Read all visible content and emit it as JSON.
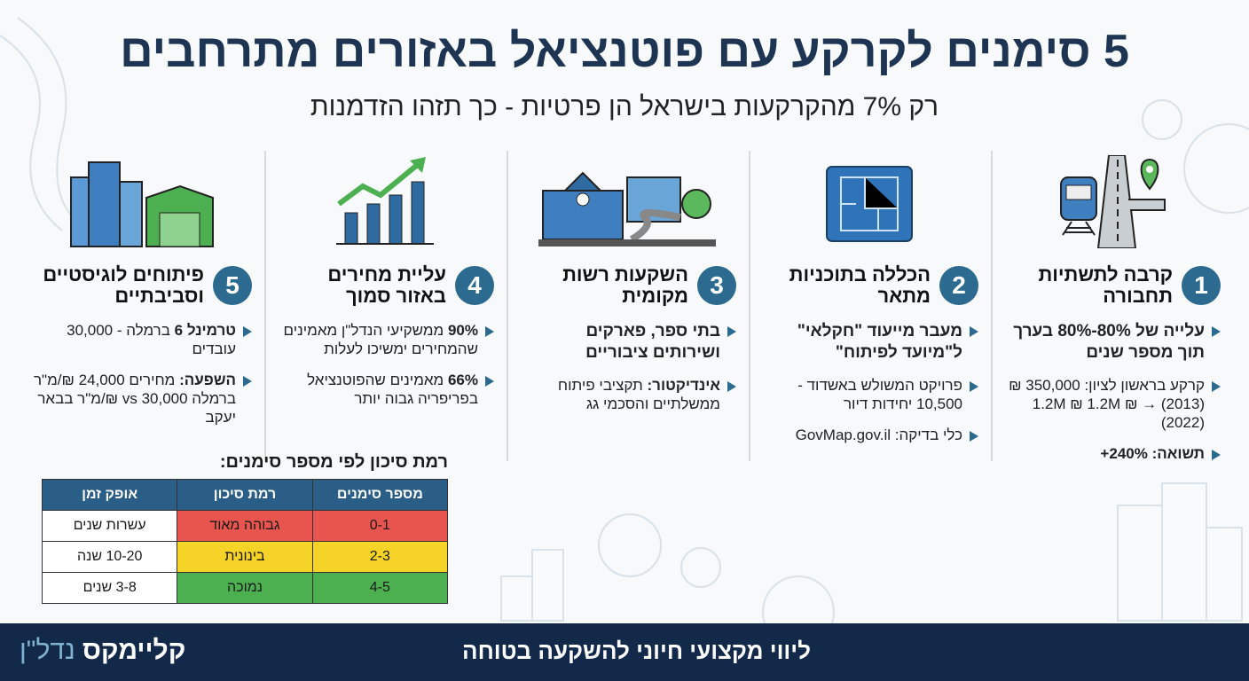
{
  "header": {
    "title": "5 סימנים לקרקע עם פוטנציאל באזורים מתרחבים",
    "subtitle": "רק 7% מהקרקעות בישראל הן פרטיות - כך תזהו הזדמנות"
  },
  "signs": [
    {
      "number": "1",
      "icon": "train-road-pin-icon",
      "title": "קרבה לתשתיות תחבורה",
      "bullets": [
        {
          "bold": "עלייה של 80%-80%",
          "text": " בערך תוך מספר שנים",
          "big": true
        },
        {
          "bold": "",
          "text": "קרקע בראשון לציון: 350,000 ₪ (2013) → 1.2M ₪ 1.2M ₪ (2022)"
        },
        {
          "bold": "תשואה: 240%+",
          "text": ""
        }
      ]
    },
    {
      "number": "2",
      "icon": "blueprint-icon",
      "title": "הכללה בתוכניות מתאר",
      "bullets": [
        {
          "bold": "מעבר מייעוד \"חקלאי\" ל\"מיועד לפיתוח\"",
          "text": "",
          "big": true
        },
        {
          "bold": "",
          "text": "פרויקט המשולש באשדוד - 10,500 יחידות דיור"
        },
        {
          "bold": "",
          "text": "כלי בדיקה: GovMap.gov.il"
        }
      ]
    },
    {
      "number": "3",
      "icon": "school-park-icon",
      "title": "השקעות רשות מקומית",
      "bullets": [
        {
          "bold": "בתי ספר, פארקים ושירותים ציבוריים",
          "text": "",
          "big": true
        },
        {
          "bold": "אינדיקטור:",
          "text": " תקציבי פיתוח ממשלתיים והסכמי גג"
        }
      ]
    },
    {
      "number": "4",
      "icon": "rising-chart-icon",
      "title": "עליית מחירים באזור סמוך",
      "bullets": [
        {
          "bold": "90%",
          "text": " ממשקיעי הנדל\"ן מאמינים שהמחירים ימשיכו לעלות"
        },
        {
          "bold": "66%",
          "text": " מאמינים שהפוטנציאל בפריפריה גבוה יותר"
        }
      ]
    },
    {
      "number": "5",
      "icon": "buildings-warehouse-icon",
      "title": "פיתוחים לוגיסטיים וסביבתיים",
      "bullets": [
        {
          "bold": "טרמינל 6",
          "text": " ברמלה - 30,000 עובדים"
        },
        {
          "bold": "השפעה:",
          "text": " מחירים 24,000 ₪/מ\"ר ברמלה vs 30,000 ₪/מ\"ר בבאר יעקב"
        }
      ]
    }
  ],
  "risk_table": {
    "title": "רמת סיכון לפי מספר סימנים:",
    "headers": [
      "מספר סימנים",
      "רמת סיכון",
      "אופק זמן"
    ],
    "rows": [
      {
        "signs": "0-1",
        "risk": "גבוהה מאוד",
        "horizon": "עשרות שנים",
        "color": "#e8554e"
      },
      {
        "signs": "2-3",
        "risk": "בינונית",
        "horizon": "10-20 שנה",
        "color": "#f5d327"
      },
      {
        "signs": "4-5",
        "risk": "נמוכה",
        "horizon": "3-8 שנים",
        "color": "#4cb050"
      }
    ]
  },
  "footer": {
    "tagline": "ליווי מקצועי חיוני להשקעה בטוחה",
    "logo_main": "קליימקס",
    "logo_sub": "נדל\"ן"
  },
  "colors": {
    "navy": "#13294a",
    "accent": "#2c6a8f",
    "title": "#1d3552"
  }
}
